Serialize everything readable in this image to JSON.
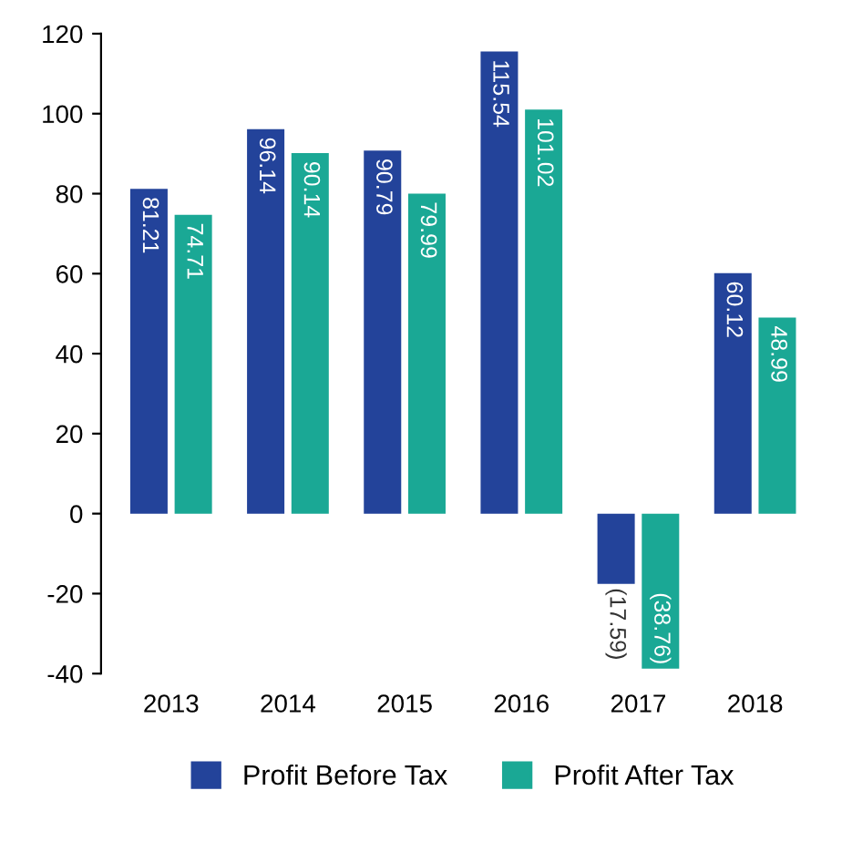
{
  "chart_data": {
    "type": "bar",
    "categories": [
      "2013",
      "2014",
      "2015",
      "2016",
      "2017",
      "2018"
    ],
    "series": [
      {
        "name": "Profit Before Tax",
        "color": "#23439a",
        "values": [
          81.21,
          96.14,
          90.79,
          115.54,
          -17.59,
          60.12
        ],
        "value_labels": [
          "81.21",
          "96.14",
          "90.79",
          "115.54",
          "(17.59)",
          "60.12"
        ]
      },
      {
        "name": "Profit After Tax",
        "color": "#1aa895",
        "values": [
          74.71,
          90.14,
          79.99,
          101.02,
          -38.76,
          48.99
        ],
        "value_labels": [
          "74.71",
          "90.14",
          "79.99",
          "101.02",
          "(38.76)",
          "48.99"
        ]
      }
    ],
    "ylim": [
      -40,
      120
    ],
    "yticks": [
      -40,
      -20,
      0,
      20,
      40,
      60,
      80,
      100,
      120
    ],
    "grid": false,
    "legend": "bottom"
  }
}
